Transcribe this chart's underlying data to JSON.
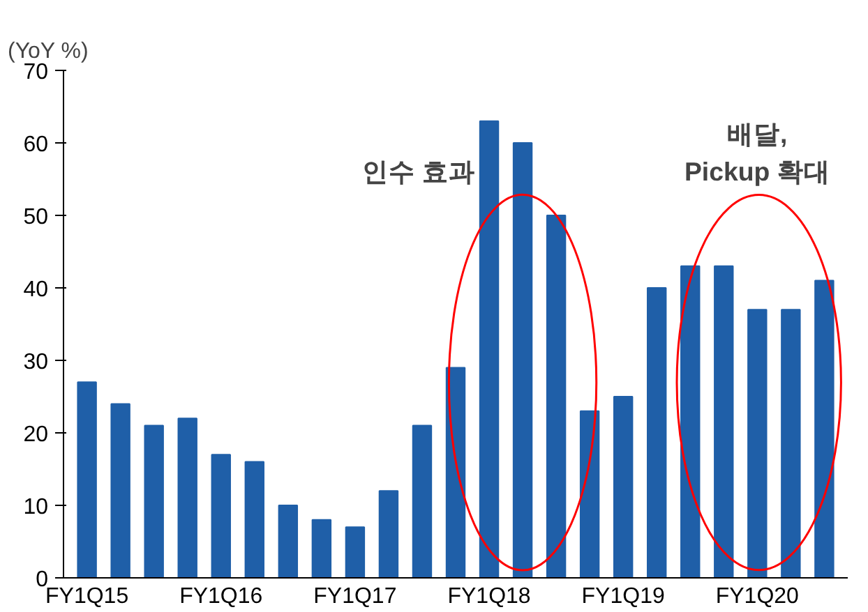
{
  "chart_data": {
    "type": "bar",
    "ylabel": "(YoY %)",
    "categories": [
      "FY1Q15",
      null,
      null,
      null,
      "FY1Q16",
      null,
      null,
      null,
      "FY1Q17",
      null,
      null,
      null,
      "FY1Q18",
      null,
      null,
      null,
      "FY1Q19",
      null,
      null,
      null,
      "FY1Q20",
      null,
      null
    ],
    "values": [
      27,
      24,
      21,
      22,
      17,
      16,
      10,
      8,
      7,
      12,
      21,
      29,
      63,
      60,
      50,
      23,
      25,
      40,
      43,
      43,
      37,
      37,
      41
    ],
    "color": "#1f5fa8",
    "ylim": [
      0,
      70
    ],
    "yticks": [
      0,
      10,
      20,
      30,
      40,
      50,
      60,
      70
    ],
    "annotations": [
      "인수 효과",
      "배달,\nPickup 확대"
    ],
    "grid": false
  }
}
